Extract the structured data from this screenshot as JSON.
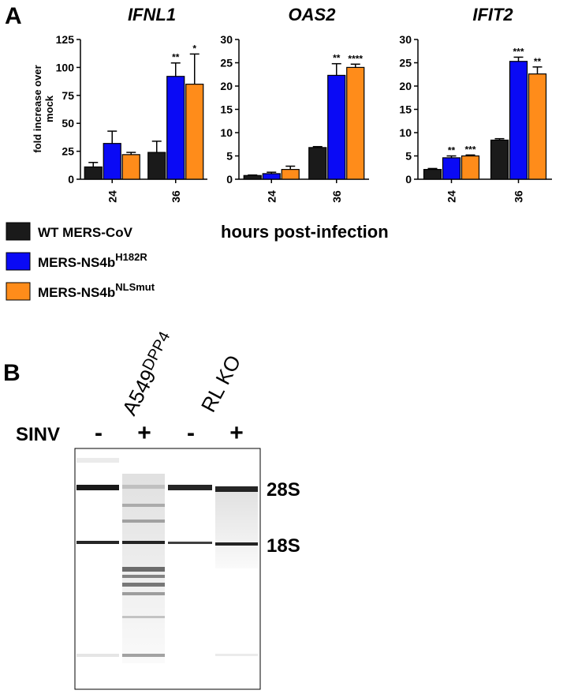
{
  "panel_labels": [
    "A",
    "B"
  ],
  "chart_data": [
    {
      "type": "bar",
      "title": "IFNL1",
      "ylabel": "fold increase over mock",
      "categories": [
        "24",
        "36"
      ],
      "series": [
        {
          "name": "WT MERS-CoV",
          "color": "#1a1a1a",
          "values": [
            11,
            24
          ],
          "errors": [
            4,
            10
          ],
          "annotations": [
            null,
            null
          ]
        },
        {
          "name": "MERS-NS4b",
          "superscript": "H182R",
          "color": "#0a0af5",
          "values": [
            32,
            92
          ],
          "errors": [
            11,
            12
          ],
          "annotations": [
            null,
            "**"
          ]
        },
        {
          "name": "MERS-NS4b",
          "superscript": "NLSmut",
          "color": "#ff8c1a",
          "values": [
            22,
            85
          ],
          "errors": [
            2,
            27
          ],
          "annotations": [
            null,
            "*"
          ]
        }
      ],
      "ylim": [
        0,
        125
      ],
      "yticks": [
        0,
        25,
        50,
        75,
        100,
        125
      ]
    },
    {
      "type": "bar",
      "title": "OAS2",
      "xlabel": "hours post-infection",
      "categories": [
        "24",
        "36"
      ],
      "series": [
        {
          "color": "#1a1a1a",
          "values": [
            0.8,
            6.8
          ],
          "errors": [
            0.1,
            0.2
          ],
          "annotations": [
            null,
            null
          ]
        },
        {
          "color": "#0a0af5",
          "values": [
            1.2,
            22.3
          ],
          "errors": [
            0.3,
            2.5
          ],
          "annotations": [
            null,
            "**"
          ]
        },
        {
          "color": "#ff8c1a",
          "values": [
            2.1,
            24
          ],
          "errors": [
            0.7,
            0.7
          ],
          "annotations": [
            null,
            "****"
          ]
        }
      ],
      "ylim": [
        0,
        30
      ],
      "yticks": [
        0,
        5,
        10,
        15,
        20,
        25,
        30
      ]
    },
    {
      "type": "bar",
      "title": "IFIT2",
      "categories": [
        "24",
        "36"
      ],
      "series": [
        {
          "color": "#1a1a1a",
          "values": [
            2.1,
            8.4
          ],
          "errors": [
            0.2,
            0.3
          ],
          "annotations": [
            null,
            null
          ]
        },
        {
          "color": "#0a0af5",
          "values": [
            4.6,
            25.3
          ],
          "errors": [
            0.4,
            0.9
          ],
          "annotations": [
            "**",
            "***"
          ]
        },
        {
          "color": "#ff8c1a",
          "values": [
            5,
            22.6
          ],
          "errors": [
            0.2,
            1.5
          ],
          "annotations": [
            "***",
            "**"
          ]
        }
      ],
      "ylim": [
        0,
        30
      ],
      "yticks": [
        0,
        5,
        10,
        15,
        20,
        25,
        30
      ]
    }
  ],
  "gel": {
    "row_label": "SINV",
    "lane_labels": [
      "-",
      "+",
      "-",
      "+"
    ],
    "group_labels": [
      {
        "text": "A549",
        "superscript": "DPP4"
      },
      {
        "text": "RL KO"
      }
    ],
    "band_labels": [
      "28S",
      "18S"
    ]
  }
}
